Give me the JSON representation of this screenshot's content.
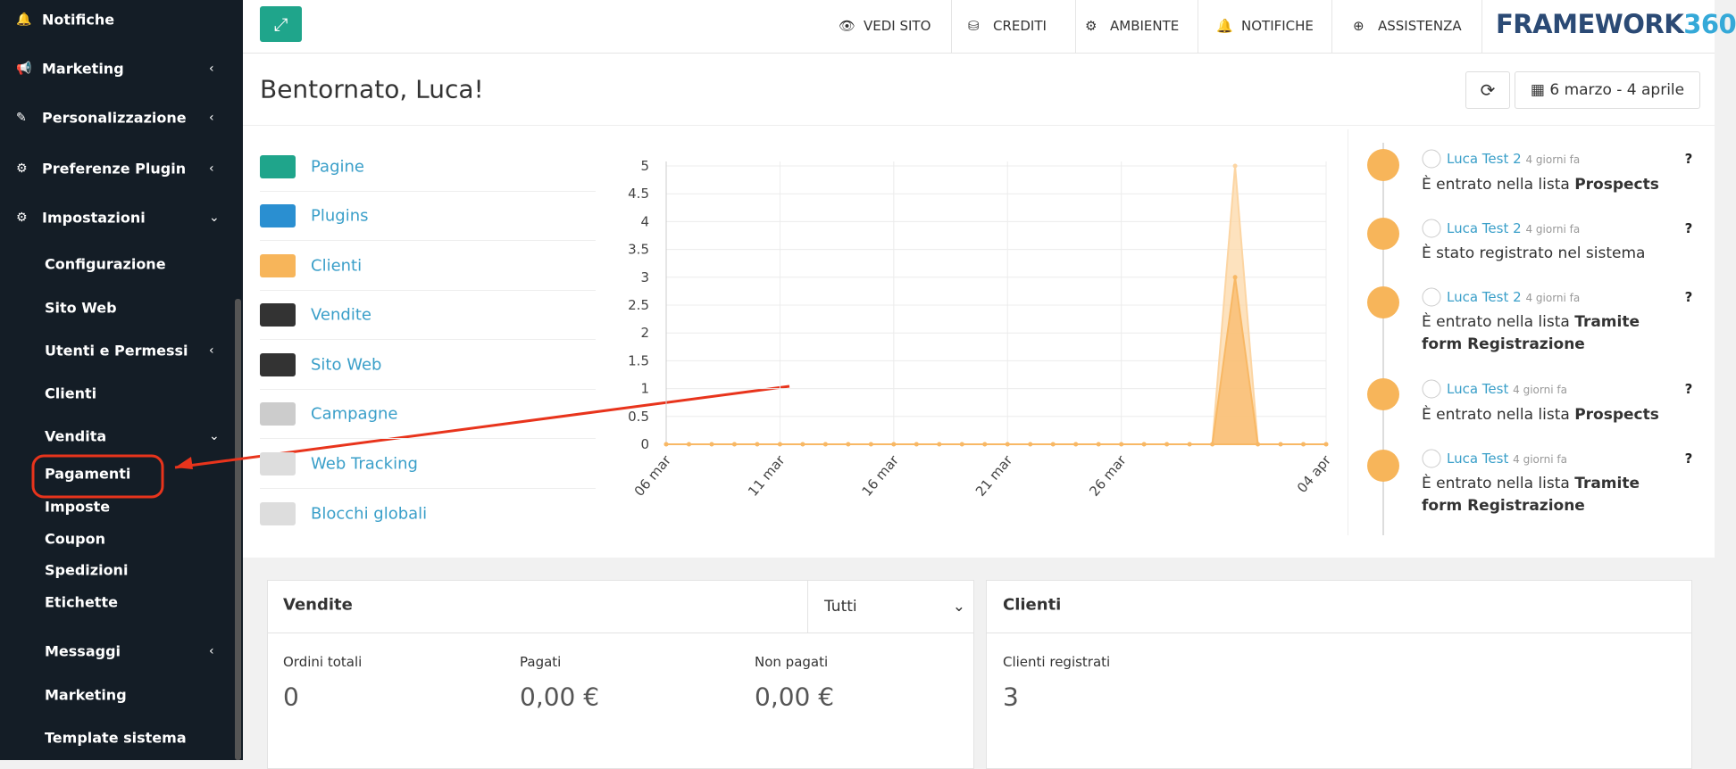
{
  "sidebar": {
    "main": [
      "Notifiche",
      "Marketing",
      "Personalizzazione",
      "Preferenze Plugin",
      "Impostazioni"
    ],
    "settings": [
      "Configurazione",
      "Sito Web",
      "Utenti e Permessi",
      "Clienti",
      "Vendita"
    ],
    "sales": [
      "Pagamenti",
      "Imposte",
      "Coupon",
      "Spedizioni",
      "Etichette"
    ],
    "more": [
      "Messaggi",
      "Marketing",
      "Template sistema"
    ]
  },
  "topbar": {
    "links": [
      "VEDI SITO",
      "CREDITI",
      "AMBIENTE",
      "NOTIFICHE",
      "ASSISTENZA"
    ],
    "brand": "FRAMEWORK",
    "brand_suffix": "360"
  },
  "header": {
    "greeting": "Bentornato, Luca!",
    "date_range": "6 marzo - 4 aprile"
  },
  "shortcuts": [
    "Pagine",
    "Plugins",
    "Clienti",
    "Vendite",
    "Sito Web",
    "Campagne",
    "Web Tracking",
    "Blocchi globali"
  ],
  "chart_data": {
    "type": "area",
    "categories": [
      "06 mar",
      null,
      null,
      null,
      null,
      "11 mar",
      null,
      null,
      null,
      null,
      "16 mar",
      null,
      null,
      null,
      null,
      "21 mar",
      null,
      null,
      null,
      null,
      "26 mar",
      null,
      null,
      null,
      null,
      null,
      null,
      null,
      null,
      "04 apr"
    ],
    "series": [
      {
        "color": "#fcd5a3",
        "values": [
          0,
          0,
          0,
          0,
          0,
          0,
          0,
          0,
          0,
          0,
          0,
          0,
          0,
          0,
          0,
          0,
          0,
          0,
          0,
          0,
          0,
          0,
          0,
          0,
          0,
          5,
          0,
          0,
          0,
          0
        ]
      },
      {
        "color": "#f8b865",
        "values": [
          0,
          0,
          0,
          0,
          0,
          0,
          0,
          0,
          0,
          0,
          0,
          0,
          0,
          0,
          0,
          0,
          0,
          0,
          0,
          0,
          0,
          0,
          0,
          0,
          0,
          3,
          0,
          0,
          0,
          0
        ]
      }
    ],
    "ylim": [
      0,
      5
    ],
    "yticks": [
      0,
      0.5,
      1,
      1.5,
      2,
      2.5,
      3,
      3.5,
      4,
      4.5,
      5
    ],
    "grid": true
  },
  "activity": [
    {
      "user": "Luca Test 2",
      "time": "4 giorni fa",
      "text": "È entrato nella lista ",
      "bold": "Prospects"
    },
    {
      "user": "Luca Test 2",
      "time": "4 giorni fa",
      "text": "È stato registrato nel sistema"
    },
    {
      "user": "Luca Test 2",
      "time": "4 giorni fa",
      "text": "È entrato nella lista ",
      "bold": "Tramite form Registrazione"
    },
    {
      "user": "Luca Test",
      "time": "4 giorni fa",
      "text": "È entrato nella lista ",
      "bold": "Prospects"
    },
    {
      "user": "Luca Test",
      "time": "4 giorni fa",
      "text": "È entrato nella lista ",
      "bold": "Tramite form Registrazione"
    }
  ],
  "cards": {
    "sales": {
      "title": "Vendite",
      "filter": "Tutti",
      "stats": [
        {
          "label": "Ordini totali",
          "value": 0
        },
        {
          "label": "Pagati",
          "value": "0,00 €"
        },
        {
          "label": "Non pagati",
          "value": "0,00 €"
        }
      ]
    },
    "clients": {
      "title": "Clienti",
      "stats": [
        {
          "label": "Clienti registrati",
          "value": 3
        }
      ]
    }
  }
}
